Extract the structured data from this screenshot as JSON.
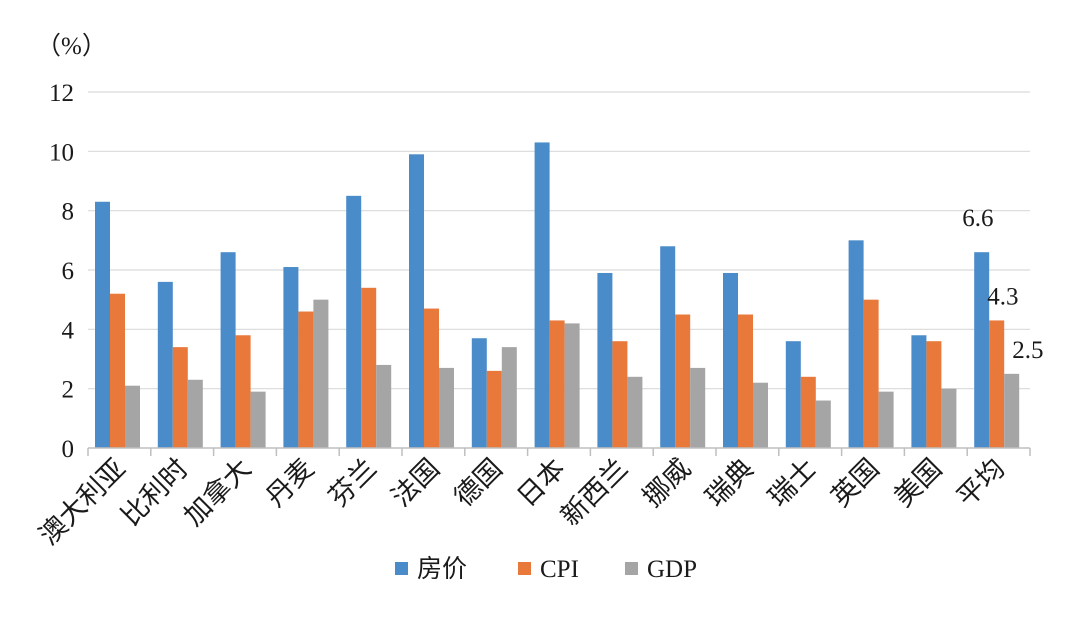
{
  "chart_data": {
    "type": "bar",
    "unit_label": "（%）",
    "categories": [
      "澳大利亚",
      "比利时",
      "加拿大",
      "丹麦",
      "芬兰",
      "法国",
      "德国",
      "日本",
      "新西兰",
      "挪威",
      "瑞典",
      "瑞士",
      "英国",
      "美国",
      "平均"
    ],
    "series": [
      {
        "name": "房价",
        "color": "#4a8cc9",
        "values": [
          8.3,
          5.6,
          6.6,
          6.1,
          8.5,
          9.9,
          3.7,
          10.3,
          5.9,
          6.8,
          5.9,
          3.6,
          7.0,
          3.8,
          6.6
        ]
      },
      {
        "name": "CPI",
        "color": "#e8793b",
        "values": [
          5.2,
          3.4,
          3.8,
          4.6,
          5.4,
          4.7,
          2.6,
          4.3,
          3.6,
          4.5,
          4.5,
          2.4,
          5.0,
          3.6,
          4.3
        ]
      },
      {
        "name": "GDP",
        "color": "#a5a5a5",
        "values": [
          2.1,
          2.3,
          1.9,
          5.0,
          2.8,
          2.7,
          3.4,
          4.2,
          2.4,
          2.7,
          2.2,
          1.6,
          1.9,
          2.0,
          2.5
        ]
      }
    ],
    "yticks": [
      "0",
      "2",
      "4",
      "6",
      "8",
      "10",
      "12"
    ],
    "ylim": [
      0,
      12
    ],
    "grid": true,
    "legend_position": "bottom",
    "data_labels": [
      "6.6",
      "4.3",
      "2.5"
    ]
  }
}
